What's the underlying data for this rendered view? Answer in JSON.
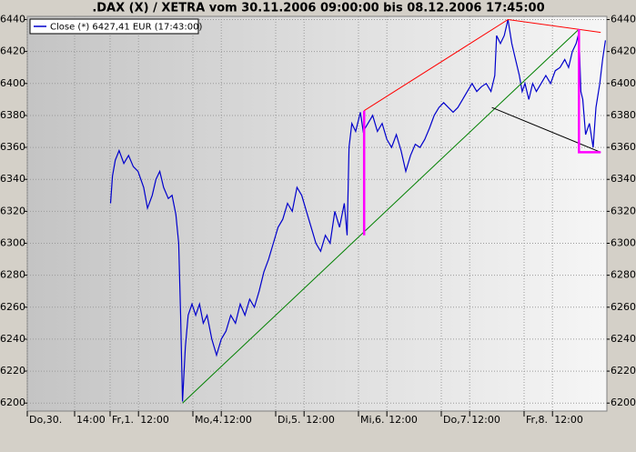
{
  "chart_data": {
    "type": "line",
    "title": ".DAX (X) / XETRA vom 30.11.2006 09:00:00 bis 08.12.2006 17:45:00",
    "x": [
      8.8,
      9.0,
      9.3,
      9.7,
      10.2,
      10.7,
      11.2,
      11.7,
      12.3,
      12.7,
      13.2,
      13.6,
      14.0,
      14.4,
      14.9,
      15.3,
      15.7,
      16.0,
      16.2,
      16.4,
      16.7,
      17.0,
      17.4,
      17.8,
      18.2,
      18.6,
      19.0,
      19.5,
      20.0,
      20.5,
      21.0,
      21.5,
      22.0,
      22.5,
      23.0,
      23.5,
      24.0,
      24.5,
      25.0,
      25.5,
      26.0,
      26.5,
      27.0,
      27.5,
      28.0,
      28.5,
      29.0,
      29.5,
      30.0,
      30.5,
      31.0,
      31.5,
      32.0,
      32.5,
      33.0,
      33.5,
      33.8,
      34.0,
      34.3,
      34.7,
      35.2,
      35.5,
      36.0,
      36.5,
      37.0,
      37.5,
      38.0,
      38.5,
      39.0,
      39.5,
      40.0,
      40.5,
      41.0,
      41.5,
      42.0,
      42.5,
      43.0,
      43.5,
      44.0,
      44.5,
      45.0,
      45.5,
      46.0,
      46.5,
      47.0,
      47.5,
      48.0,
      48.5,
      49.0,
      49.4,
      49.6,
      50.0,
      50.4,
      50.8,
      51.2,
      51.6,
      52.0,
      52.3,
      52.6,
      53.0,
      53.4,
      53.8,
      54.3,
      54.8,
      55.3,
      55.8,
      56.3,
      56.8,
      57.2,
      57.6,
      58.0,
      58.3,
      58.5,
      58.7,
      59.0,
      59.4,
      59.8,
      60.1,
      60.5,
      60.8,
      61.1
    ],
    "series": [
      {
        "name": "Close (*) 6427,41 EUR (17:43:00)",
        "color": "#0000cc",
        "values": [
          6325,
          6342,
          6352,
          6358,
          6350,
          6355,
          6348,
          6345,
          6335,
          6322,
          6330,
          6340,
          6345,
          6335,
          6328,
          6330,
          6318,
          6300,
          6255,
          6201,
          6235,
          6255,
          6262,
          6255,
          6262,
          6250,
          6255,
          6240,
          6230,
          6240,
          6245,
          6255,
          6250,
          6262,
          6255,
          6265,
          6260,
          6270,
          6282,
          6290,
          6300,
          6310,
          6315,
          6325,
          6320,
          6335,
          6330,
          6320,
          6310,
          6300,
          6295,
          6305,
          6300,
          6320,
          6310,
          6325,
          6305,
          6360,
          6375,
          6370,
          6382,
          6370,
          6375,
          6380,
          6370,
          6375,
          6365,
          6360,
          6368,
          6358,
          6345,
          6355,
          6362,
          6360,
          6365,
          6372,
          6380,
          6385,
          6388,
          6385,
          6382,
          6385,
          6390,
          6395,
          6400,
          6395,
          6398,
          6400,
          6395,
          6405,
          6430,
          6425,
          6430,
          6440,
          6425,
          6415,
          6405,
          6395,
          6400,
          6390,
          6400,
          6395,
          6400,
          6405,
          6400,
          6408,
          6410,
          6415,
          6410,
          6420,
          6425,
          6432,
          6395,
          6390,
          6368,
          6375,
          6360,
          6385,
          6400,
          6415,
          6427
        ]
      }
    ],
    "trend_lines": [
      {
        "color": "#ff0000",
        "x": [
          35.6,
          50.8,
          60.6
        ],
        "y": [
          6383,
          6440,
          6432
        ]
      },
      {
        "color": "#008000",
        "x": [
          16.4,
          58.3
        ],
        "y": [
          6200,
          6434
        ]
      },
      {
        "color": "#000000",
        "x": [
          49.1,
          60.6
        ],
        "y": [
          6385,
          6357
        ]
      },
      {
        "color": "#ff00ff",
        "x": [
          35.6,
          35.6
        ],
        "y": [
          6383,
          6305
        ]
      },
      {
        "color": "#ff00ff",
        "x": [
          58.3,
          58.3,
          60.6
        ],
        "y": [
          6434,
          6357,
          6357
        ]
      }
    ],
    "xlim": [
      0,
      61.25
    ],
    "xticks": [
      {
        "value": 0,
        "label": "Do,30."
      },
      {
        "value": 5,
        "label": "14:00"
      },
      {
        "value": 8.75,
        "label": "Fr,1."
      },
      {
        "value": 11.75,
        "label": "12:00"
      },
      {
        "value": 17.5,
        "label": "Mo,4."
      },
      {
        "value": 20.5,
        "label": "12:00"
      },
      {
        "value": 26.25,
        "label": "Di,5."
      },
      {
        "value": 29.25,
        "label": "12:00"
      },
      {
        "value": 35,
        "label": "Mi,6."
      },
      {
        "value": 38,
        "label": "12:00"
      },
      {
        "value": 43.75,
        "label": "Do,7."
      },
      {
        "value": 46.75,
        "label": "12:00"
      },
      {
        "value": 52.5,
        "label": "Fr,8."
      },
      {
        "value": 55.5,
        "label": "12:00"
      }
    ],
    "ylim": [
      6195,
      6442
    ],
    "yticks": [
      6200,
      6220,
      6240,
      6260,
      6280,
      6300,
      6320,
      6340,
      6360,
      6380,
      6400,
      6420,
      6440
    ],
    "grid": true
  }
}
